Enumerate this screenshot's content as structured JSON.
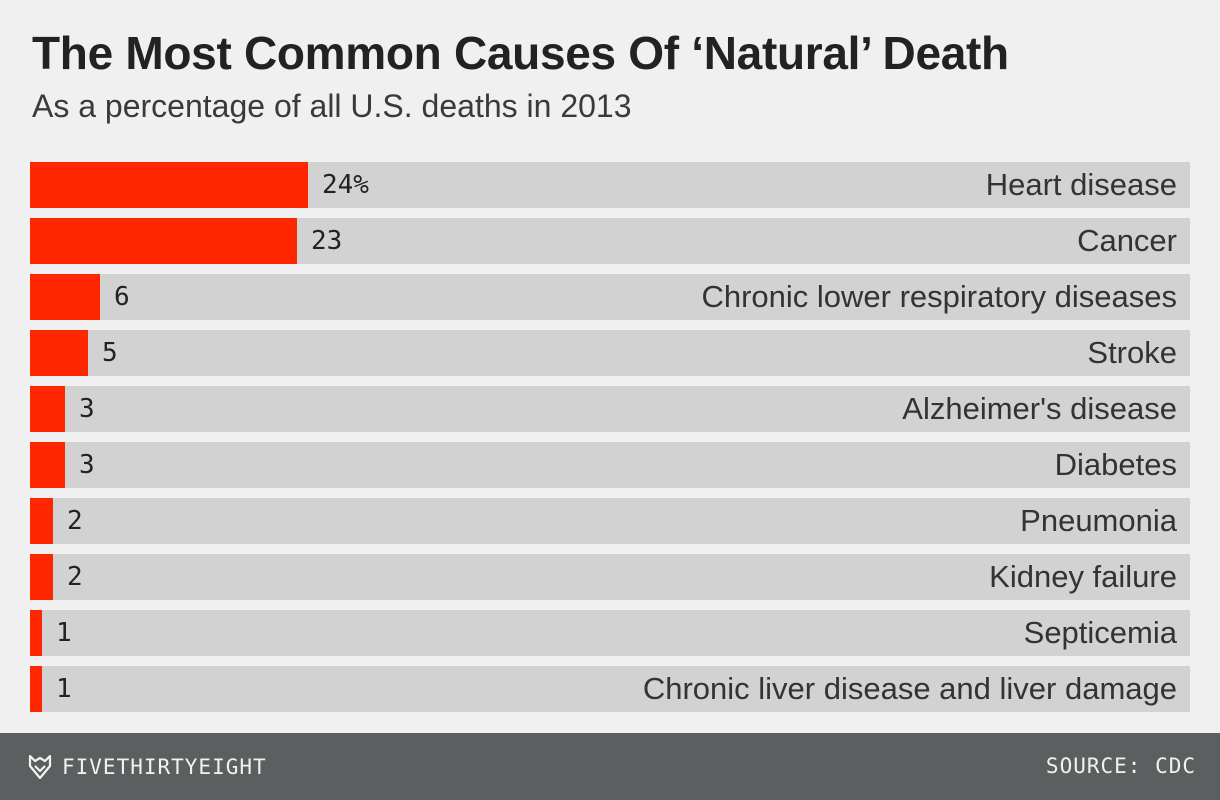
{
  "header": {
    "title": "The Most Common Causes Of ‘Natural’ Death",
    "subtitle": "As a percentage of all U.S. deaths in 2013"
  },
  "chart_data": {
    "type": "bar",
    "orientation": "horizontal",
    "title": "The Most Common Causes Of ‘Natural’ Death",
    "subtitle": "As a percentage of all U.S. deaths in 2013",
    "categories": [
      "Heart disease",
      "Cancer",
      "Chronic lower respiratory diseases",
      "Stroke",
      "Alzheimer's disease",
      "Diabetes",
      "Pneumonia",
      "Kidney failure",
      "Septicemia",
      "Chronic liver disease and liver damage"
    ],
    "values": [
      24,
      23,
      6,
      5,
      3,
      3,
      2,
      2,
      1,
      1
    ],
    "value_labels": [
      "24%",
      "23",
      "6",
      "5",
      "3",
      "3",
      "2",
      "2",
      "1",
      "1"
    ],
    "xlim": [
      0,
      100
    ],
    "grid": false,
    "legend": "none",
    "colors": {
      "bar": "#ff2700",
      "track": "#d2d2d2"
    }
  },
  "footer": {
    "brand": "FIVETHIRTYEIGHT",
    "logo_icon": "fivethirtyeight-fox-icon",
    "source": "SOURCE: CDC"
  }
}
